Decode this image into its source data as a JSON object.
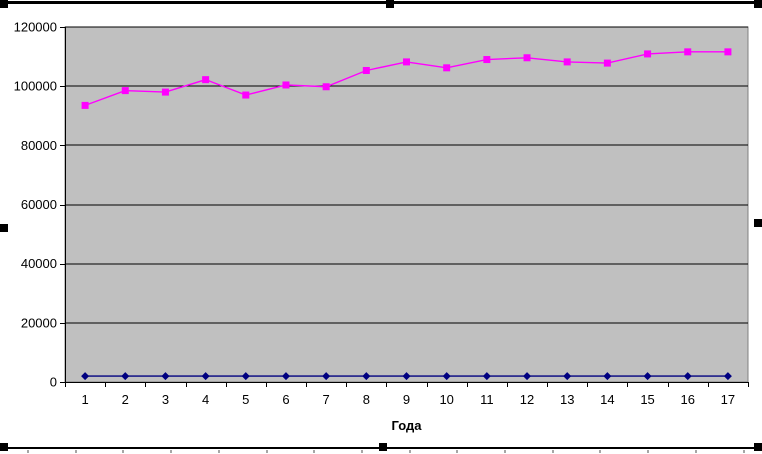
{
  "chart_data": {
    "type": "line",
    "title": "",
    "xlabel": "Года",
    "ylabel": "",
    "x_categories": [
      "1",
      "2",
      "3",
      "4",
      "5",
      "6",
      "7",
      "8",
      "9",
      "10",
      "11",
      "12",
      "13",
      "14",
      "15",
      "16",
      "17"
    ],
    "ylim": [
      0,
      120000
    ],
    "ytick_step": 20000,
    "yticks": [
      0,
      20000,
      40000,
      60000,
      80000,
      100000,
      120000
    ],
    "ytick_labels": [
      "0",
      "20000",
      "40000",
      "60000",
      "80000",
      "100000",
      "120000"
    ],
    "grid": "horizontal-major",
    "legend": "none",
    "plot_background": "#c0c0c0",
    "series": [
      {
        "name": "series-1-navy-diamond",
        "color": "#000080",
        "marker": "diamond",
        "values": [
          2000,
          2000,
          2000,
          2000,
          2000,
          2000,
          2000,
          2000,
          2000,
          2000,
          2000,
          2000,
          2000,
          2000,
          2000,
          2000,
          2000
        ]
      },
      {
        "name": "series-2-magenta-square",
        "color": "#ff00ff",
        "marker": "square",
        "values": [
          93500,
          98500,
          98000,
          102200,
          97000,
          100400,
          99800,
          105300,
          108200,
          106200,
          109000,
          109600,
          108200,
          107800,
          110900,
          111600,
          111600
        ]
      }
    ]
  },
  "frame": {
    "chart_background": "#ffffff",
    "gridline_color": "#000000",
    "axis_color": "#000000",
    "plot_border_color": "#808080",
    "selection_color": "#000000",
    "tick_label_font_px": 13,
    "axis_title_font_px": 13
  }
}
